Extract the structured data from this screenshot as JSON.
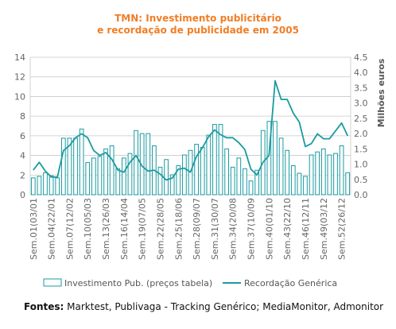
{
  "chart_data": {
    "type": "bar+line",
    "title": "TMN: Investimento publicitário",
    "subtitle": "e recordação de publicidade em 2005",
    "y2label": "Milhões euros",
    "ylim": [
      0,
      14
    ],
    "y2lim": [
      0,
      4.5
    ],
    "yticks": [
      "0",
      "2",
      "4",
      "6",
      "8",
      "10",
      "12",
      "14"
    ],
    "y2ticks": [
      "0.0",
      "0.5",
      "1.0",
      "1.5",
      "2.0",
      "2.5",
      "3.0",
      "3.5",
      "4.0",
      "4.5"
    ],
    "xtick_labels": [
      "Sem.01(03/01",
      "Sem.04(22/01",
      "Sem.07(12/02",
      "Sem.10(05/03",
      "Sem.13(26/03",
      "Sem.16(14/04",
      "Sem.19(07/05",
      "Sem.22(28/05",
      "Sem.25(18/06",
      "Sem.28(09/07",
      "Sem.31(30/07",
      "Sem.34(20/08",
      "Sem.37(10/09",
      "Sem.40(01/10",
      "Sem.43(22/10",
      "Sem.46(12/11",
      "Sem.49(03/12",
      "Sem.52(26/12"
    ],
    "series": [
      {
        "name": "Investimento Pub. (preços tabela)",
        "type": "bar",
        "axis": "right",
        "color": "#1a9ba0",
        "values": [
          0.55,
          0.6,
          0.72,
          0.62,
          0.55,
          1.85,
          1.85,
          1.85,
          2.15,
          1.05,
          1.2,
          1.25,
          1.5,
          1.6,
          0.85,
          1.2,
          1.35,
          2.1,
          2.0,
          2.0,
          1.6,
          0.9,
          1.15,
          0.65,
          0.95,
          1.3,
          1.45,
          1.65,
          1.55,
          1.95,
          2.3,
          2.3,
          1.5,
          0.9,
          1.2,
          0.85,
          0.45,
          0.8,
          2.1,
          2.4,
          2.4,
          1.85,
          1.45,
          0.95,
          0.7,
          0.6,
          1.3,
          1.4,
          1.5,
          1.3,
          1.35,
          1.6,
          0.72
        ]
      },
      {
        "name": "Recordação Genérica",
        "type": "line",
        "axis": "left",
        "color": "#1a9ba0",
        "values": [
          2.5,
          3.3,
          2.4,
          1.8,
          1.8,
          4.5,
          5.0,
          5.8,
          6.2,
          5.8,
          4.5,
          4.0,
          4.3,
          3.6,
          2.5,
          2.3,
          3.3,
          4.0,
          2.9,
          2.4,
          2.5,
          2.1,
          1.5,
          1.7,
          2.6,
          2.7,
          2.3,
          3.9,
          4.8,
          5.9,
          6.6,
          6.1,
          5.8,
          5.8,
          5.3,
          4.6,
          2.6,
          2.0,
          3.3,
          4.0,
          11.6,
          9.7,
          9.7,
          8.3,
          7.4,
          4.9,
          5.2,
          6.2,
          5.7,
          5.7,
          6.5,
          7.3,
          6.0
        ]
      }
    ],
    "legend": {
      "placement": "bottom"
    },
    "grid": true
  },
  "source": {
    "label": "Fontes:",
    "text": " Marktest, Publivaga - Tracking Genérico; MediaMonitor, Admonitor"
  }
}
